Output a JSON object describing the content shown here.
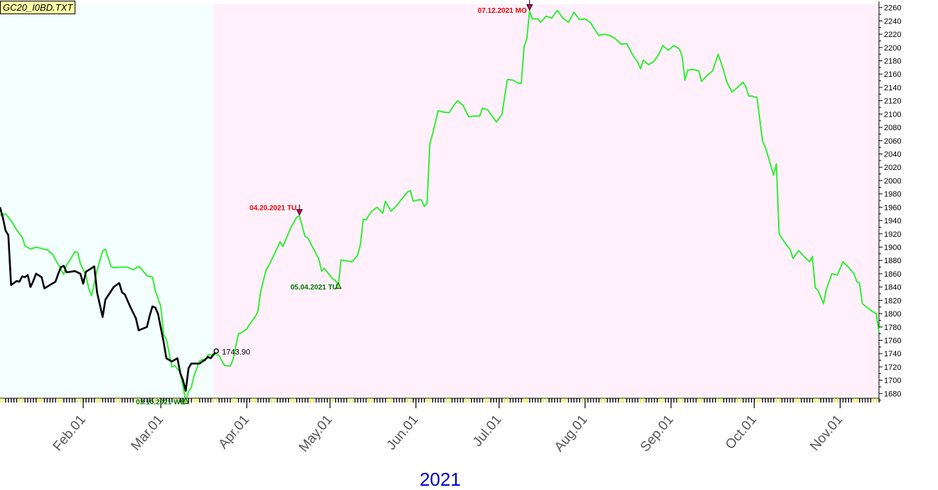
{
  "chart_data": {
    "type": "line",
    "title": "GC20_I0BD.TXT",
    "xlabel": "2021",
    "price_label": "1743.90",
    "price_label_value": 1743.9,
    "ylim": [
      1675,
      2265
    ],
    "y_ticks": [
      1680,
      1700,
      1720,
      1740,
      1760,
      1780,
      1800,
      1820,
      1840,
      1860,
      1880,
      1900,
      1920,
      1940,
      1960,
      1980,
      2000,
      2020,
      2040,
      2060,
      2080,
      2100,
      2120,
      2140,
      2160,
      2180,
      2200,
      2220,
      2240,
      2260
    ],
    "x_start": "2021-01-02",
    "x_end": "2021-11-15",
    "history_end": "2021-03-20",
    "month_ticks": [
      {
        "label": "Feb.01",
        "date": "2021-02-01"
      },
      {
        "label": "Mar.01",
        "date": "2021-03-01"
      },
      {
        "label": "Apr.01",
        "date": "2021-04-01"
      },
      {
        "label": "May.01",
        "date": "2021-05-01"
      },
      {
        "label": "Jun.01",
        "date": "2021-06-01"
      },
      {
        "label": "Jul.01",
        "date": "2021-07-01"
      },
      {
        "label": "Aug.01",
        "date": "2021-08-01"
      },
      {
        "label": "Sep.01",
        "date": "2021-09-01"
      },
      {
        "label": "Oct.01",
        "date": "2021-10-01"
      },
      {
        "label": "Nov.01",
        "date": "2021-11-01"
      }
    ],
    "colors": {
      "history_bg": "#f4ffff",
      "forecast_bg": "#fff0fc",
      "forecast_line": "#33ee33",
      "price_line": "#000000",
      "high_label": "#ee0000",
      "low_label": "#007700",
      "year_label": "#0000cc"
    },
    "series": [
      {
        "kind": "forecast",
        "points": [
          [
            "2021-01-02",
            1948
          ],
          [
            "2021-01-04",
            1950
          ],
          [
            "2021-01-06",
            1940
          ],
          [
            "2021-01-08",
            1926
          ],
          [
            "2021-01-10",
            1915
          ],
          [
            "2021-01-11",
            1902
          ],
          [
            "2021-01-13",
            1897
          ],
          [
            "2021-01-15",
            1900
          ],
          [
            "2021-01-17",
            1898
          ],
          [
            "2021-01-19",
            1896
          ],
          [
            "2021-01-21",
            1889
          ],
          [
            "2021-01-23",
            1874
          ],
          [
            "2021-01-24",
            1866
          ],
          [
            "2021-01-25",
            1859
          ],
          [
            "2021-01-26",
            1873
          ],
          [
            "2021-01-27",
            1879
          ],
          [
            "2021-01-29",
            1893
          ],
          [
            "2021-01-30",
            1892
          ],
          [
            "2021-01-31",
            1875
          ],
          [
            "2021-02-02",
            1857
          ],
          [
            "2021-02-03",
            1838
          ],
          [
            "2021-02-04",
            1827
          ],
          [
            "2021-02-06",
            1865
          ],
          [
            "2021-02-08",
            1894
          ],
          [
            "2021-02-09",
            1897
          ],
          [
            "2021-02-11",
            1871
          ],
          [
            "2021-02-12",
            1869
          ],
          [
            "2021-02-14",
            1870
          ],
          [
            "2021-02-17",
            1870
          ],
          [
            "2021-02-19",
            1866
          ],
          [
            "2021-02-21",
            1871
          ],
          [
            "2021-02-22",
            1867
          ],
          [
            "2021-02-24",
            1857
          ],
          [
            "2021-02-26",
            1855
          ],
          [
            "2021-02-27",
            1835
          ],
          [
            "2021-03-01",
            1811
          ],
          [
            "2021-03-02",
            1769
          ],
          [
            "2021-03-03",
            1762
          ],
          [
            "2021-03-04",
            1741
          ],
          [
            "2021-03-05",
            1720
          ],
          [
            "2021-03-06",
            1722
          ],
          [
            "2021-03-08",
            1712
          ],
          [
            "2021-03-09",
            1691
          ],
          [
            "2021-03-10",
            1669
          ],
          [
            "2021-03-11",
            1683
          ],
          [
            "2021-03-12",
            1689
          ],
          [
            "2021-03-13",
            1707
          ],
          [
            "2021-03-15",
            1729
          ],
          [
            "2021-03-16",
            1731
          ],
          [
            "2021-03-17",
            1729
          ],
          [
            "2021-03-18",
            1738
          ],
          [
            "2021-03-19",
            1738
          ],
          [
            "2021-03-20",
            1739
          ],
          [
            "2021-03-21",
            1739
          ],
          [
            "2021-03-22",
            1737
          ],
          [
            "2021-03-24",
            1722
          ],
          [
            "2021-03-26",
            1721
          ],
          [
            "2021-03-27",
            1730
          ],
          [
            "2021-03-29",
            1770
          ],
          [
            "2021-03-30",
            1771
          ],
          [
            "2021-04-01",
            1777
          ],
          [
            "2021-04-02",
            1784
          ],
          [
            "2021-04-04",
            1795
          ],
          [
            "2021-04-05",
            1803
          ],
          [
            "2021-04-06",
            1833
          ],
          [
            "2021-04-08",
            1866
          ],
          [
            "2021-04-09",
            1873
          ],
          [
            "2021-04-11",
            1890
          ],
          [
            "2021-04-13",
            1908
          ],
          [
            "2021-04-14",
            1901
          ],
          [
            "2021-04-17",
            1930
          ],
          [
            "2021-04-19",
            1945
          ],
          [
            "2021-04-20",
            1947
          ],
          [
            "2021-04-22",
            1916
          ],
          [
            "2021-04-23",
            1914
          ],
          [
            "2021-04-25",
            1898
          ],
          [
            "2021-04-27",
            1882
          ],
          [
            "2021-04-28",
            1864
          ],
          [
            "2021-04-29",
            1868
          ],
          [
            "2021-05-02",
            1852
          ],
          [
            "2021-05-03",
            1850
          ],
          [
            "2021-05-04",
            1842
          ],
          [
            "2021-05-05",
            1881
          ],
          [
            "2021-05-06",
            1880
          ],
          [
            "2021-05-09",
            1878
          ],
          [
            "2021-05-11",
            1888
          ],
          [
            "2021-05-12",
            1905
          ],
          [
            "2021-05-13",
            1942
          ],
          [
            "2021-05-14",
            1941
          ],
          [
            "2021-05-16",
            1954
          ],
          [
            "2021-05-18",
            1960
          ],
          [
            "2021-05-20",
            1951
          ],
          [
            "2021-05-21",
            1969
          ],
          [
            "2021-05-23",
            1954
          ],
          [
            "2021-05-25",
            1962
          ],
          [
            "2021-05-27",
            1973
          ],
          [
            "2021-05-29",
            1983
          ],
          [
            "2021-05-30",
            1985
          ],
          [
            "2021-05-31",
            1969
          ],
          [
            "2021-06-02",
            1971
          ],
          [
            "2021-06-03",
            1971
          ],
          [
            "2021-06-04",
            1961
          ],
          [
            "2021-06-05",
            1966
          ],
          [
            "2021-06-06",
            2055
          ],
          [
            "2021-06-07",
            2070
          ],
          [
            "2021-06-09",
            2105
          ],
          [
            "2021-06-11",
            2103
          ],
          [
            "2021-06-13",
            2102
          ],
          [
            "2021-06-15",
            2115
          ],
          [
            "2021-06-16",
            2120
          ],
          [
            "2021-06-18",
            2113
          ],
          [
            "2021-06-20",
            2096
          ],
          [
            "2021-06-22",
            2097
          ],
          [
            "2021-06-24",
            2097
          ],
          [
            "2021-06-25",
            2109
          ],
          [
            "2021-06-27",
            2106
          ],
          [
            "2021-06-29",
            2094
          ],
          [
            "2021-06-30",
            2088
          ],
          [
            "2021-07-02",
            2099
          ],
          [
            "2021-07-04",
            2152
          ],
          [
            "2021-07-06",
            2151
          ],
          [
            "2021-07-08",
            2146
          ],
          [
            "2021-07-09",
            2146
          ],
          [
            "2021-07-10",
            2201
          ],
          [
            "2021-07-11",
            2213
          ],
          [
            "2021-07-12",
            2255
          ],
          [
            "2021-07-13",
            2243
          ],
          [
            "2021-07-15",
            2243
          ],
          [
            "2021-07-16",
            2238
          ],
          [
            "2021-07-18",
            2247
          ],
          [
            "2021-07-20",
            2244
          ],
          [
            "2021-07-22",
            2256
          ],
          [
            "2021-07-24",
            2244
          ],
          [
            "2021-07-26",
            2238
          ],
          [
            "2021-07-28",
            2253
          ],
          [
            "2021-07-30",
            2242
          ],
          [
            "2021-08-01",
            2243
          ],
          [
            "2021-08-03",
            2237
          ],
          [
            "2021-08-05",
            2224
          ],
          [
            "2021-08-06",
            2218
          ],
          [
            "2021-08-08",
            2220
          ],
          [
            "2021-08-10",
            2218
          ],
          [
            "2021-08-12",
            2213
          ],
          [
            "2021-08-14",
            2205
          ],
          [
            "2021-08-16",
            2206
          ],
          [
            "2021-08-18",
            2190
          ],
          [
            "2021-08-20",
            2178
          ],
          [
            "2021-08-21",
            2168
          ],
          [
            "2021-08-22",
            2181
          ],
          [
            "2021-08-24",
            2174
          ],
          [
            "2021-08-26",
            2180
          ],
          [
            "2021-08-28",
            2193
          ],
          [
            "2021-08-29",
            2203
          ],
          [
            "2021-08-31",
            2196
          ],
          [
            "2021-09-02",
            2203
          ],
          [
            "2021-09-04",
            2198
          ],
          [
            "2021-09-05",
            2187
          ],
          [
            "2021-09-06",
            2151
          ],
          [
            "2021-09-07",
            2166
          ],
          [
            "2021-09-09",
            2167
          ],
          [
            "2021-09-11",
            2165
          ],
          [
            "2021-09-12",
            2149
          ],
          [
            "2021-09-14",
            2158
          ],
          [
            "2021-09-16",
            2165
          ],
          [
            "2021-09-18",
            2190
          ],
          [
            "2021-09-20",
            2165
          ],
          [
            "2021-09-21",
            2149
          ],
          [
            "2021-09-23",
            2133
          ],
          [
            "2021-09-25",
            2140
          ],
          [
            "2021-09-27",
            2148
          ],
          [
            "2021-09-28",
            2141
          ],
          [
            "2021-09-29",
            2127
          ],
          [
            "2021-09-30",
            2127
          ],
          [
            "2021-10-02",
            2125
          ],
          [
            "2021-10-04",
            2060
          ],
          [
            "2021-10-05",
            2050
          ],
          [
            "2021-10-06",
            2037
          ],
          [
            "2021-10-08",
            2008
          ],
          [
            "2021-10-09",
            2025
          ],
          [
            "2021-10-10",
            1920
          ],
          [
            "2021-10-12",
            1907
          ],
          [
            "2021-10-14",
            1896
          ],
          [
            "2021-10-15",
            1883
          ],
          [
            "2021-10-17",
            1895
          ],
          [
            "2021-10-19",
            1886
          ],
          [
            "2021-10-21",
            1878
          ],
          [
            "2021-10-22",
            1886
          ],
          [
            "2021-10-23",
            1839
          ],
          [
            "2021-10-24",
            1835
          ],
          [
            "2021-10-26",
            1815
          ],
          [
            "2021-10-27",
            1836
          ],
          [
            "2021-10-29",
            1860
          ],
          [
            "2021-10-31",
            1858
          ],
          [
            "2021-11-02",
            1878
          ],
          [
            "2021-11-04",
            1870
          ],
          [
            "2021-11-06",
            1860
          ],
          [
            "2021-11-07",
            1848
          ],
          [
            "2021-11-08",
            1846
          ],
          [
            "2021-11-09",
            1815
          ],
          [
            "2021-11-12",
            1805
          ],
          [
            "2021-11-14",
            1800
          ],
          [
            "2021-11-15",
            1772
          ]
        ]
      },
      {
        "kind": "price",
        "points": [
          [
            "2021-01-02",
            1960
          ],
          [
            "2021-01-03",
            1945
          ],
          [
            "2021-01-04",
            1925
          ],
          [
            "2021-01-05",
            1918
          ],
          [
            "2021-01-06",
            1843
          ],
          [
            "2021-01-07",
            1846
          ],
          [
            "2021-01-08",
            1849
          ],
          [
            "2021-01-09",
            1848
          ],
          [
            "2021-01-10",
            1856
          ],
          [
            "2021-01-11",
            1855
          ],
          [
            "2021-01-12",
            1858
          ],
          [
            "2021-01-13",
            1840
          ],
          [
            "2021-01-14",
            1849
          ],
          [
            "2021-01-15",
            1860
          ],
          [
            "2021-01-17",
            1855
          ],
          [
            "2021-01-18",
            1838
          ],
          [
            "2021-01-20",
            1843
          ],
          [
            "2021-01-22",
            1848
          ],
          [
            "2021-01-23",
            1860
          ],
          [
            "2021-01-24",
            1870
          ],
          [
            "2021-01-25",
            1872
          ],
          [
            "2021-01-26",
            1862
          ],
          [
            "2021-01-29",
            1864
          ],
          [
            "2021-01-31",
            1860
          ],
          [
            "2021-02-01",
            1845
          ],
          [
            "2021-02-02",
            1863
          ],
          [
            "2021-02-05",
            1871
          ],
          [
            "2021-02-06",
            1832
          ],
          [
            "2021-02-08",
            1795
          ],
          [
            "2021-02-09",
            1821
          ],
          [
            "2021-02-12",
            1840
          ],
          [
            "2021-02-14",
            1846
          ],
          [
            "2021-02-15",
            1832
          ],
          [
            "2021-02-16",
            1829
          ],
          [
            "2021-02-18",
            1810
          ],
          [
            "2021-02-20",
            1793
          ],
          [
            "2021-02-21",
            1775
          ],
          [
            "2021-02-24",
            1780
          ],
          [
            "2021-02-25",
            1797
          ],
          [
            "2021-02-26",
            1811
          ],
          [
            "2021-02-27",
            1809
          ],
          [
            "2021-02-28",
            1800
          ],
          [
            "2021-03-01",
            1779
          ],
          [
            "2021-03-02",
            1758
          ],
          [
            "2021-03-03",
            1733
          ],
          [
            "2021-03-05",
            1728
          ],
          [
            "2021-03-07",
            1733
          ],
          [
            "2021-03-08",
            1711
          ],
          [
            "2021-03-09",
            1700
          ],
          [
            "2021-03-10",
            1684
          ],
          [
            "2021-03-11",
            1718
          ],
          [
            "2021-03-12",
            1725
          ],
          [
            "2021-03-15",
            1725
          ],
          [
            "2021-03-17",
            1731
          ],
          [
            "2021-03-18",
            1735
          ],
          [
            "2021-03-19",
            1733
          ],
          [
            "2021-03-21",
            1743.9
          ]
        ]
      }
    ],
    "annotations": [
      {
        "label": "03.10.2021 WE",
        "date": "2021-03-10",
        "value": 1669,
        "type": "low"
      },
      {
        "label": "04.20.2021 TU",
        "date": "2021-04-20",
        "value": 1947,
        "type": "high"
      },
      {
        "label": "05.04.2021 TU",
        "date": "2021-05-04",
        "value": 1842,
        "type": "low"
      },
      {
        "label": "07.12.2021 MO",
        "date": "2021-07-12",
        "value": 2255,
        "type": "high"
      }
    ]
  }
}
